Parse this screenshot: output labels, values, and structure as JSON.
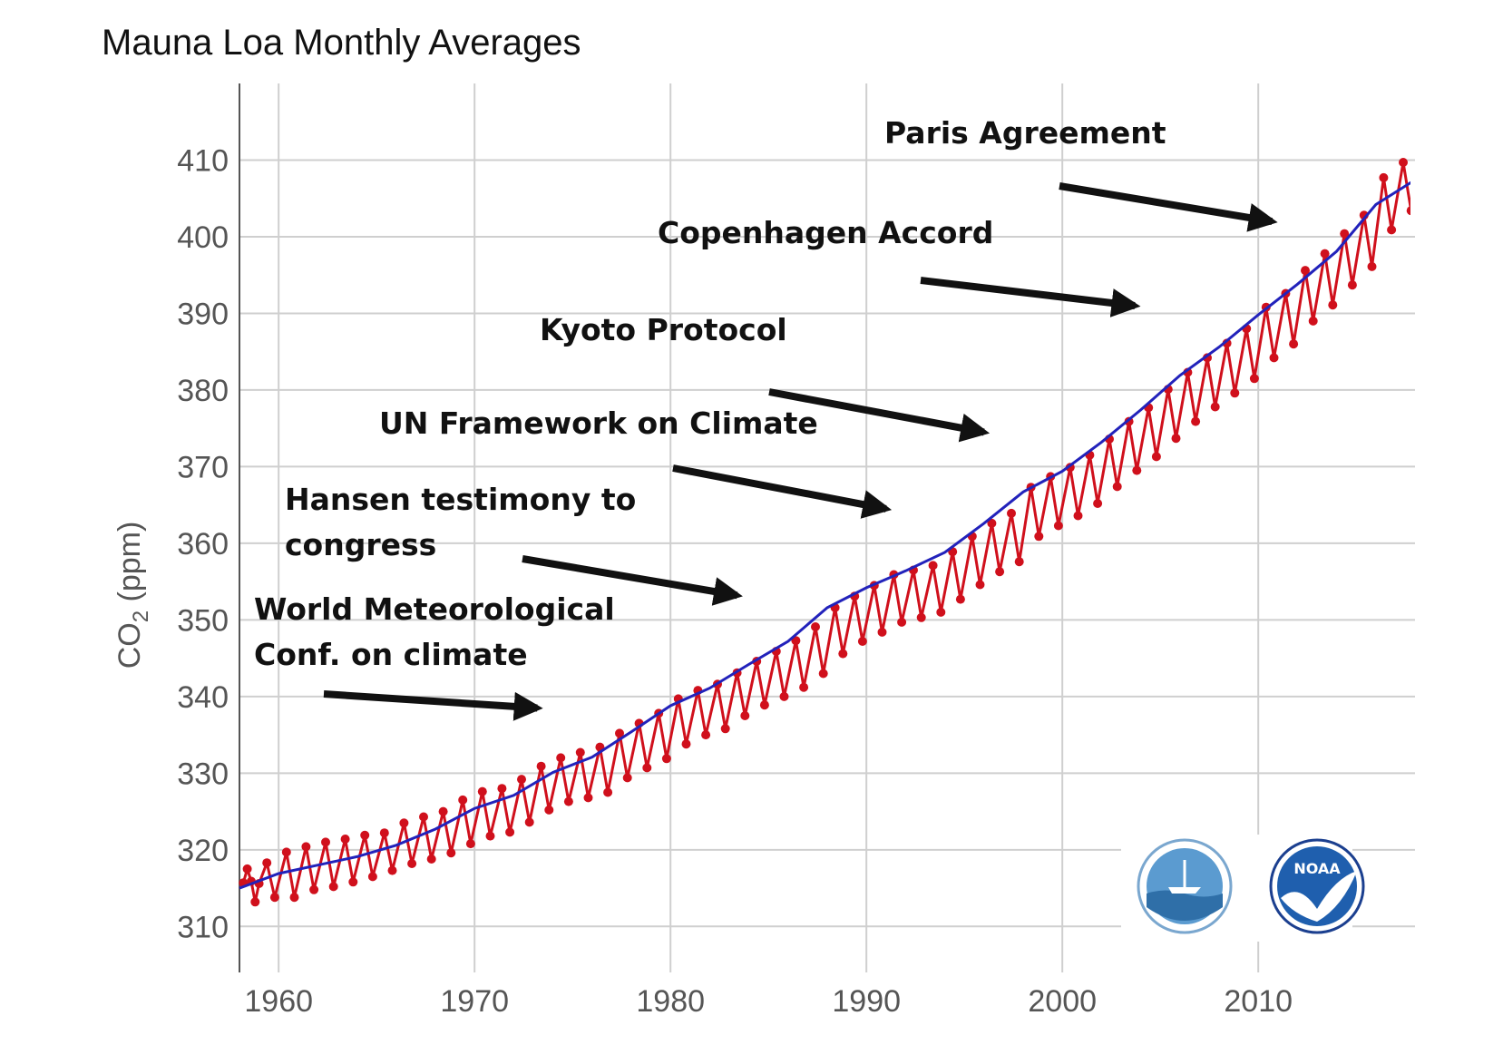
{
  "chart_data": {
    "type": "line",
    "title": "Mauna Loa Monthly Averages",
    "ylabel": "CO2 (ppm)",
    "xlabel": "",
    "xlim": [
      1958,
      2018
    ],
    "ylim": [
      304,
      420
    ],
    "xticks": [
      1960,
      1970,
      1980,
      1990,
      2000,
      2010
    ],
    "yticks": [
      310,
      320,
      330,
      340,
      350,
      360,
      370,
      380,
      390,
      400,
      410
    ],
    "grid": true,
    "series": [
      {
        "style": "monthly-points",
        "color": "#d0101c",
        "points": [
          [
            1958.2,
            315.7
          ],
          [
            1958.4,
            317.5
          ],
          [
            1958.6,
            315.9
          ],
          [
            1958.8,
            313.2
          ],
          [
            1959.0,
            315.6
          ],
          [
            1959.4,
            318.3
          ],
          [
            1959.8,
            313.8
          ],
          [
            1960.4,
            319.7
          ],
          [
            1960.8,
            313.8
          ],
          [
            1961.4,
            320.4
          ],
          [
            1961.8,
            314.8
          ],
          [
            1962.4,
            321.0
          ],
          [
            1962.8,
            315.2
          ],
          [
            1963.4,
            321.4
          ],
          [
            1963.8,
            315.8
          ],
          [
            1964.4,
            321.9
          ],
          [
            1964.8,
            316.5
          ],
          [
            1965.4,
            322.2
          ],
          [
            1965.8,
            317.3
          ],
          [
            1966.4,
            323.5
          ],
          [
            1966.8,
            318.2
          ],
          [
            1967.4,
            324.3
          ],
          [
            1967.8,
            318.8
          ],
          [
            1968.4,
            325.0
          ],
          [
            1968.8,
            319.6
          ],
          [
            1969.4,
            326.5
          ],
          [
            1969.8,
            320.8
          ],
          [
            1970.4,
            327.6
          ],
          [
            1970.8,
            321.8
          ],
          [
            1971.4,
            328.0
          ],
          [
            1971.8,
            322.3
          ],
          [
            1972.4,
            329.2
          ],
          [
            1972.8,
            323.6
          ],
          [
            1973.4,
            330.9
          ],
          [
            1973.8,
            325.2
          ],
          [
            1974.4,
            332.0
          ],
          [
            1974.8,
            326.3
          ],
          [
            1975.4,
            332.7
          ],
          [
            1975.8,
            326.8
          ],
          [
            1976.4,
            333.4
          ],
          [
            1976.8,
            327.5
          ],
          [
            1977.4,
            335.2
          ],
          [
            1977.8,
            329.4
          ],
          [
            1978.4,
            336.5
          ],
          [
            1978.8,
            330.7
          ],
          [
            1979.4,
            337.8
          ],
          [
            1979.8,
            331.9
          ],
          [
            1980.4,
            339.7
          ],
          [
            1980.8,
            333.8
          ],
          [
            1981.4,
            340.8
          ],
          [
            1981.8,
            335.0
          ],
          [
            1982.4,
            341.6
          ],
          [
            1982.8,
            335.8
          ],
          [
            1983.4,
            343.1
          ],
          [
            1983.8,
            337.5
          ],
          [
            1984.4,
            344.6
          ],
          [
            1984.8,
            338.9
          ],
          [
            1985.4,
            345.9
          ],
          [
            1985.8,
            340.0
          ],
          [
            1986.4,
            347.3
          ],
          [
            1986.8,
            341.2
          ],
          [
            1987.4,
            349.1
          ],
          [
            1987.8,
            343.0
          ],
          [
            1988.4,
            351.6
          ],
          [
            1988.8,
            345.6
          ],
          [
            1989.4,
            353.1
          ],
          [
            1989.8,
            347.2
          ],
          [
            1990.4,
            354.5
          ],
          [
            1990.8,
            348.4
          ],
          [
            1991.4,
            355.9
          ],
          [
            1991.8,
            349.7
          ],
          [
            1992.4,
            356.5
          ],
          [
            1992.8,
            350.3
          ],
          [
            1993.4,
            357.1
          ],
          [
            1993.8,
            351.0
          ],
          [
            1994.4,
            358.9
          ],
          [
            1994.8,
            352.7
          ],
          [
            1995.4,
            360.9
          ],
          [
            1995.8,
            354.6
          ],
          [
            1996.4,
            362.6
          ],
          [
            1996.8,
            356.3
          ],
          [
            1997.4,
            363.9
          ],
          [
            1997.8,
            357.6
          ],
          [
            1998.4,
            367.3
          ],
          [
            1998.8,
            360.9
          ],
          [
            1999.4,
            368.7
          ],
          [
            1999.8,
            362.3
          ],
          [
            2000.4,
            369.9
          ],
          [
            2000.8,
            363.6
          ],
          [
            2001.4,
            371.5
          ],
          [
            2001.8,
            365.2
          ],
          [
            2002.4,
            373.6
          ],
          [
            2002.8,
            367.4
          ],
          [
            2003.4,
            375.9
          ],
          [
            2003.8,
            369.5
          ],
          [
            2004.4,
            377.7
          ],
          [
            2004.8,
            371.3
          ],
          [
            2005.4,
            380.1
          ],
          [
            2005.8,
            373.7
          ],
          [
            2006.4,
            382.3
          ],
          [
            2006.8,
            375.9
          ],
          [
            2007.4,
            384.2
          ],
          [
            2007.8,
            377.8
          ],
          [
            2008.4,
            386.1
          ],
          [
            2008.8,
            379.6
          ],
          [
            2009.4,
            388.0
          ],
          [
            2009.8,
            381.5
          ],
          [
            2010.4,
            390.8
          ],
          [
            2010.8,
            384.2
          ],
          [
            2011.4,
            392.6
          ],
          [
            2011.8,
            386.0
          ],
          [
            2012.4,
            395.6
          ],
          [
            2012.8,
            389.0
          ],
          [
            2013.4,
            397.8
          ],
          [
            2013.8,
            391.1
          ],
          [
            2014.4,
            400.4
          ],
          [
            2014.8,
            393.7
          ],
          [
            2015.4,
            402.8
          ],
          [
            2015.8,
            396.1
          ],
          [
            2016.4,
            407.7
          ],
          [
            2016.8,
            400.9
          ],
          [
            2017.4,
            409.7
          ],
          [
            2017.8,
            403.4
          ],
          [
            2018.0,
            407.5
          ]
        ]
      },
      {
        "style": "trend-line",
        "color": "#2222bb",
        "x": [
          1958,
          1960,
          1962,
          1964,
          1966,
          1968,
          1970,
          1972,
          1974,
          1976,
          1978,
          1980,
          1982,
          1984,
          1986,
          1988,
          1990,
          1992,
          1994,
          1996,
          1998,
          2000,
          2002,
          2004,
          2006,
          2008,
          2010,
          2012,
          2014,
          2016,
          2018
        ],
        "values": [
          315.0,
          316.9,
          318.0,
          319.1,
          320.6,
          322.7,
          325.4,
          327.1,
          330.1,
          332.1,
          335.4,
          338.8,
          341.1,
          344.2,
          347.2,
          351.6,
          354.2,
          356.4,
          358.8,
          362.6,
          366.7,
          369.4,
          373.2,
          377.4,
          381.9,
          385.6,
          389.8,
          393.8,
          398.1,
          404.2,
          407.4
        ]
      }
    ],
    "annotations": [
      {
        "lines": [
          "Paris Agreement"
        ],
        "target": [
          2010.7,
          402.0
        ]
      },
      {
        "lines": [
          "Copenhagen Accord"
        ],
        "target": [
          2003.7,
          391.0
        ]
      },
      {
        "lines": [
          "Kyoto Protocol"
        ],
        "target": [
          1996.0,
          374.5
        ]
      },
      {
        "lines": [
          "UN Framework on Climate"
        ],
        "target": [
          1991.0,
          364.5
        ]
      },
      {
        "lines": [
          "Hansen testimony to",
          "congress"
        ],
        "target": [
          1983.4,
          353.2
        ]
      },
      {
        "lines": [
          "World Meteorological",
          "Conf. on climate"
        ],
        "target": [
          1973.2,
          338.5
        ]
      }
    ],
    "logos": [
      "sio-seal-logo",
      "noaa-logo"
    ],
    "logo_text": {
      "noaa": "NOAA"
    }
  }
}
